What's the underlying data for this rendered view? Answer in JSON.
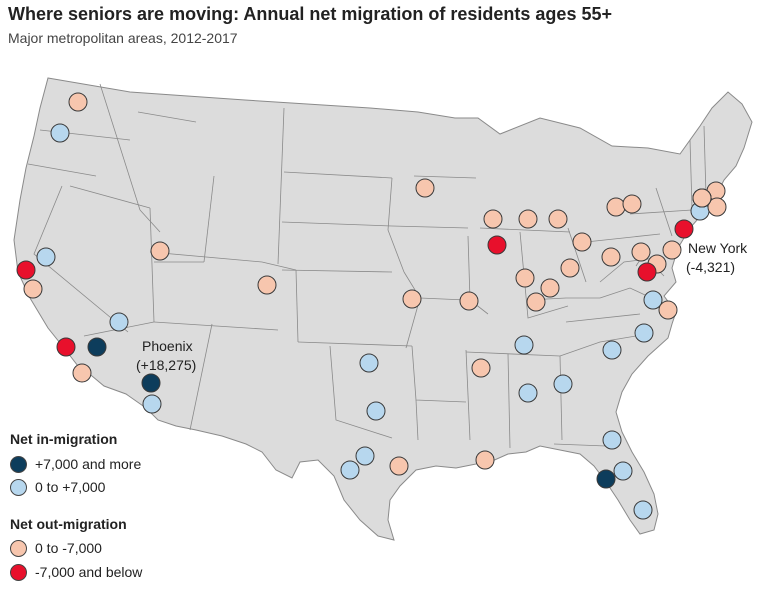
{
  "title": "Where seniors are moving: Annual net migration of residents ages 55+",
  "subtitle": "Major metropolitan areas, 2012-2017",
  "callouts": {
    "phoenix_name": "Phoenix",
    "phoenix_value": "(+18,275)",
    "newyork_name": "New York",
    "newyork_value": "(-4,321)"
  },
  "legend": {
    "in_title": "Net in-migration",
    "out_title": "Net out-migration",
    "items": [
      {
        "category": "in_high",
        "label": "+7,000 and more",
        "color": "#0d3d5c"
      },
      {
        "category": "in_low",
        "label": "0 to +7,000",
        "color": "#b7d7ee"
      },
      {
        "category": "out_low",
        "label": "0 to -7,000",
        "color": "#f7c6ae"
      },
      {
        "category": "out_high",
        "label": "-7,000 and below",
        "color": "#e8102c"
      }
    ]
  },
  "colors": {
    "land": "#dcdcdc",
    "state_border": "#8a8a8a",
    "marker_outline": "#3a3a3a"
  },
  "metros": [
    {
      "category": "out_low"
    },
    {
      "category": "in_low"
    },
    {
      "category": "in_low"
    },
    {
      "category": "out_high"
    },
    {
      "category": "out_low"
    },
    {
      "category": "out_low"
    },
    {
      "category": "in_low"
    },
    {
      "category": "out_high"
    },
    {
      "category": "in_high"
    },
    {
      "category": "out_low"
    },
    {
      "category": "in_high"
    },
    {
      "category": "in_low"
    },
    {
      "category": "out_low"
    },
    {
      "category": "in_low"
    },
    {
      "category": "in_low"
    },
    {
      "category": "in_low"
    },
    {
      "category": "in_low"
    },
    {
      "category": "out_low"
    },
    {
      "category": "out_low"
    },
    {
      "category": "out_low"
    },
    {
      "category": "out_low"
    },
    {
      "category": "out_low"
    },
    {
      "category": "out_high"
    },
    {
      "category": "out_low"
    },
    {
      "category": "out_low"
    },
    {
      "category": "out_low"
    },
    {
      "category": "out_low"
    },
    {
      "category": "out_low"
    },
    {
      "category": "out_low"
    },
    {
      "category": "out_low"
    },
    {
      "category": "out_low"
    },
    {
      "category": "out_low"
    },
    {
      "category": "out_low"
    },
    {
      "category": "out_low"
    },
    {
      "category": "out_low"
    },
    {
      "category": "out_low"
    },
    {
      "category": "out_high"
    },
    {
      "category": "out_low"
    },
    {
      "category": "out_low"
    },
    {
      "category": "out_high"
    },
    {
      "category": "in_low"
    },
    {
      "category": "out_low"
    },
    {
      "category": "in_low"
    },
    {
      "category": "in_low"
    },
    {
      "category": "in_low"
    },
    {
      "category": "in_low"
    },
    {
      "category": "out_low"
    },
    {
      "category": "in_low"
    },
    {
      "category": "in_low"
    },
    {
      "category": "in_low"
    },
    {
      "category": "in_high"
    },
    {
      "category": "in_low"
    },
    {
      "category": "in_low"
    },
    {
      "category": "out_low"
    },
    {
      "category": "out_low"
    },
    {
      "category": "out_low"
    },
    {
      "category": "out_low"
    },
    {
      "category": "out_low"
    }
  ]
}
